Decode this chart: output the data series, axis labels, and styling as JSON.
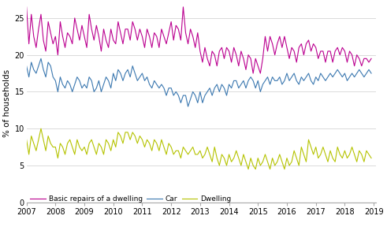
{
  "ylabel": "% of households",
  "xlim_start": 2007.0,
  "xlim_end": 2019.08,
  "ylim": [
    0,
    27
  ],
  "yticks": [
    0,
    5,
    10,
    15,
    20,
    25
  ],
  "xticks": [
    2007,
    2008,
    2009,
    2010,
    2011,
    2012,
    2013,
    2014,
    2015,
    2016,
    2017,
    2018,
    2019
  ],
  "car_color": "#3b78b0",
  "dwelling_color": "#b5c300",
  "repairs_color": "#bb0090",
  "legend_labels": [
    "Car",
    "Dwelling",
    "Basic repairs of a dwelling"
  ],
  "car": [
    18.5,
    17.0,
    19.0,
    18.0,
    17.5,
    18.5,
    19.5,
    18.0,
    17.0,
    19.0,
    18.5,
    17.0,
    16.5,
    15.0,
    17.0,
    16.0,
    15.5,
    16.5,
    16.0,
    15.0,
    16.0,
    17.0,
    16.5,
    15.5,
    16.0,
    15.5,
    17.0,
    16.5,
    15.0,
    15.5,
    16.5,
    15.0,
    16.0,
    17.0,
    16.5,
    15.5,
    17.5,
    16.5,
    18.0,
    17.5,
    16.5,
    17.5,
    18.0,
    17.0,
    18.5,
    17.5,
    16.5,
    17.0,
    17.5,
    16.5,
    17.0,
    16.0,
    15.5,
    16.5,
    16.0,
    15.5,
    16.0,
    15.5,
    14.5,
    15.5,
    15.5,
    14.5,
    15.0,
    14.5,
    13.5,
    14.5,
    14.5,
    13.0,
    14.0,
    15.0,
    14.5,
    13.5,
    15.0,
    13.5,
    14.5,
    15.0,
    15.5,
    14.5,
    15.5,
    16.0,
    15.0,
    16.0,
    15.5,
    14.5,
    16.0,
    15.5,
    16.5,
    16.5,
    15.5,
    16.0,
    16.5,
    15.5,
    16.5,
    17.0,
    16.5,
    15.5,
    16.5,
    15.0,
    16.0,
    16.5,
    17.0,
    16.0,
    17.0,
    16.5,
    16.5,
    17.0,
    16.0,
    16.5,
    17.5,
    16.5,
    17.0,
    17.5,
    16.5,
    16.0,
    17.0,
    16.5,
    17.0,
    17.5,
    16.5,
    16.0,
    17.0,
    16.5,
    17.5,
    17.0,
    16.5,
    17.0,
    17.5,
    17.0,
    17.5,
    18.0,
    17.5,
    17.0,
    17.5,
    16.5,
    17.0,
    17.5,
    17.0,
    17.5,
    18.0,
    17.5,
    17.0,
    17.5,
    18.0,
    17.5
  ],
  "dwelling": [
    8.5,
    6.5,
    9.0,
    8.0,
    7.0,
    8.5,
    10.0,
    8.5,
    7.0,
    9.0,
    8.0,
    7.5,
    7.5,
    6.0,
    8.0,
    7.5,
    6.5,
    8.0,
    8.5,
    7.5,
    6.5,
    8.5,
    7.5,
    7.0,
    7.5,
    6.5,
    8.0,
    8.5,
    7.5,
    6.5,
    8.0,
    7.5,
    6.5,
    8.5,
    8.0,
    7.0,
    8.5,
    7.5,
    9.5,
    9.0,
    8.0,
    9.5,
    9.5,
    8.5,
    9.5,
    9.0,
    8.0,
    9.0,
    8.5,
    7.5,
    8.5,
    8.0,
    7.0,
    8.5,
    8.0,
    7.0,
    8.5,
    7.5,
    6.5,
    8.0,
    7.5,
    6.5,
    7.0,
    7.0,
    6.0,
    7.5,
    7.0,
    6.5,
    7.0,
    7.5,
    6.5,
    6.5,
    7.0,
    6.0,
    6.5,
    7.5,
    6.5,
    5.5,
    7.5,
    6.0,
    5.0,
    6.5,
    6.0,
    5.0,
    6.5,
    5.5,
    6.0,
    7.0,
    6.0,
    5.0,
    6.5,
    5.5,
    4.5,
    6.0,
    5.0,
    4.5,
    6.0,
    5.0,
    5.5,
    6.5,
    5.5,
    4.5,
    6.0,
    5.0,
    5.5,
    6.5,
    5.5,
    4.5,
    6.0,
    5.0,
    5.5,
    7.0,
    6.0,
    5.0,
    7.5,
    6.5,
    5.5,
    8.5,
    7.5,
    6.5,
    7.5,
    6.0,
    6.5,
    7.5,
    6.5,
    5.5,
    7.0,
    6.0,
    5.5,
    7.5,
    6.5,
    6.0,
    7.0,
    6.0,
    6.5,
    7.5,
    6.5,
    5.5,
    7.0,
    6.5,
    5.5,
    7.0,
    6.5,
    6.0
  ],
  "repairs": [
    26.5,
    21.5,
    25.5,
    22.5,
    21.0,
    23.5,
    25.5,
    22.0,
    20.5,
    24.5,
    23.0,
    21.5,
    22.5,
    20.0,
    24.5,
    22.5,
    21.0,
    23.0,
    22.5,
    21.5,
    25.0,
    23.5,
    22.0,
    24.0,
    22.5,
    21.0,
    25.5,
    23.5,
    22.0,
    24.0,
    22.5,
    20.5,
    23.5,
    22.0,
    21.0,
    23.5,
    22.0,
    21.5,
    24.5,
    23.0,
    21.5,
    23.5,
    23.5,
    22.0,
    24.5,
    23.5,
    22.0,
    23.5,
    22.5,
    21.0,
    23.5,
    22.5,
    21.0,
    23.0,
    22.5,
    21.0,
    23.5,
    22.5,
    21.5,
    23.0,
    24.5,
    22.0,
    24.0,
    23.5,
    22.0,
    26.5,
    23.0,
    21.5,
    23.5,
    22.5,
    21.0,
    23.0,
    20.5,
    19.0,
    21.0,
    19.5,
    18.5,
    20.5,
    20.0,
    18.5,
    20.5,
    21.0,
    19.5,
    21.0,
    20.5,
    19.0,
    21.0,
    20.0,
    18.5,
    20.5,
    19.5,
    18.0,
    20.0,
    19.5,
    17.5,
    19.5,
    18.5,
    17.5,
    19.5,
    22.5,
    20.5,
    22.5,
    21.5,
    20.0,
    21.5,
    22.5,
    21.0,
    22.5,
    21.0,
    19.5,
    21.0,
    20.5,
    19.0,
    21.0,
    21.5,
    20.0,
    21.5,
    22.0,
    20.5,
    21.5,
    21.0,
    19.5,
    20.5,
    20.5,
    19.0,
    20.5,
    20.5,
    19.0,
    20.5,
    21.0,
    20.0,
    21.0,
    20.5,
    19.0,
    20.5,
    20.0,
    18.5,
    20.0,
    19.5,
    18.5,
    19.5,
    19.5,
    19.0,
    19.5
  ],
  "n_points": 144,
  "start_year": 2007.0,
  "end_year": 2019.0
}
